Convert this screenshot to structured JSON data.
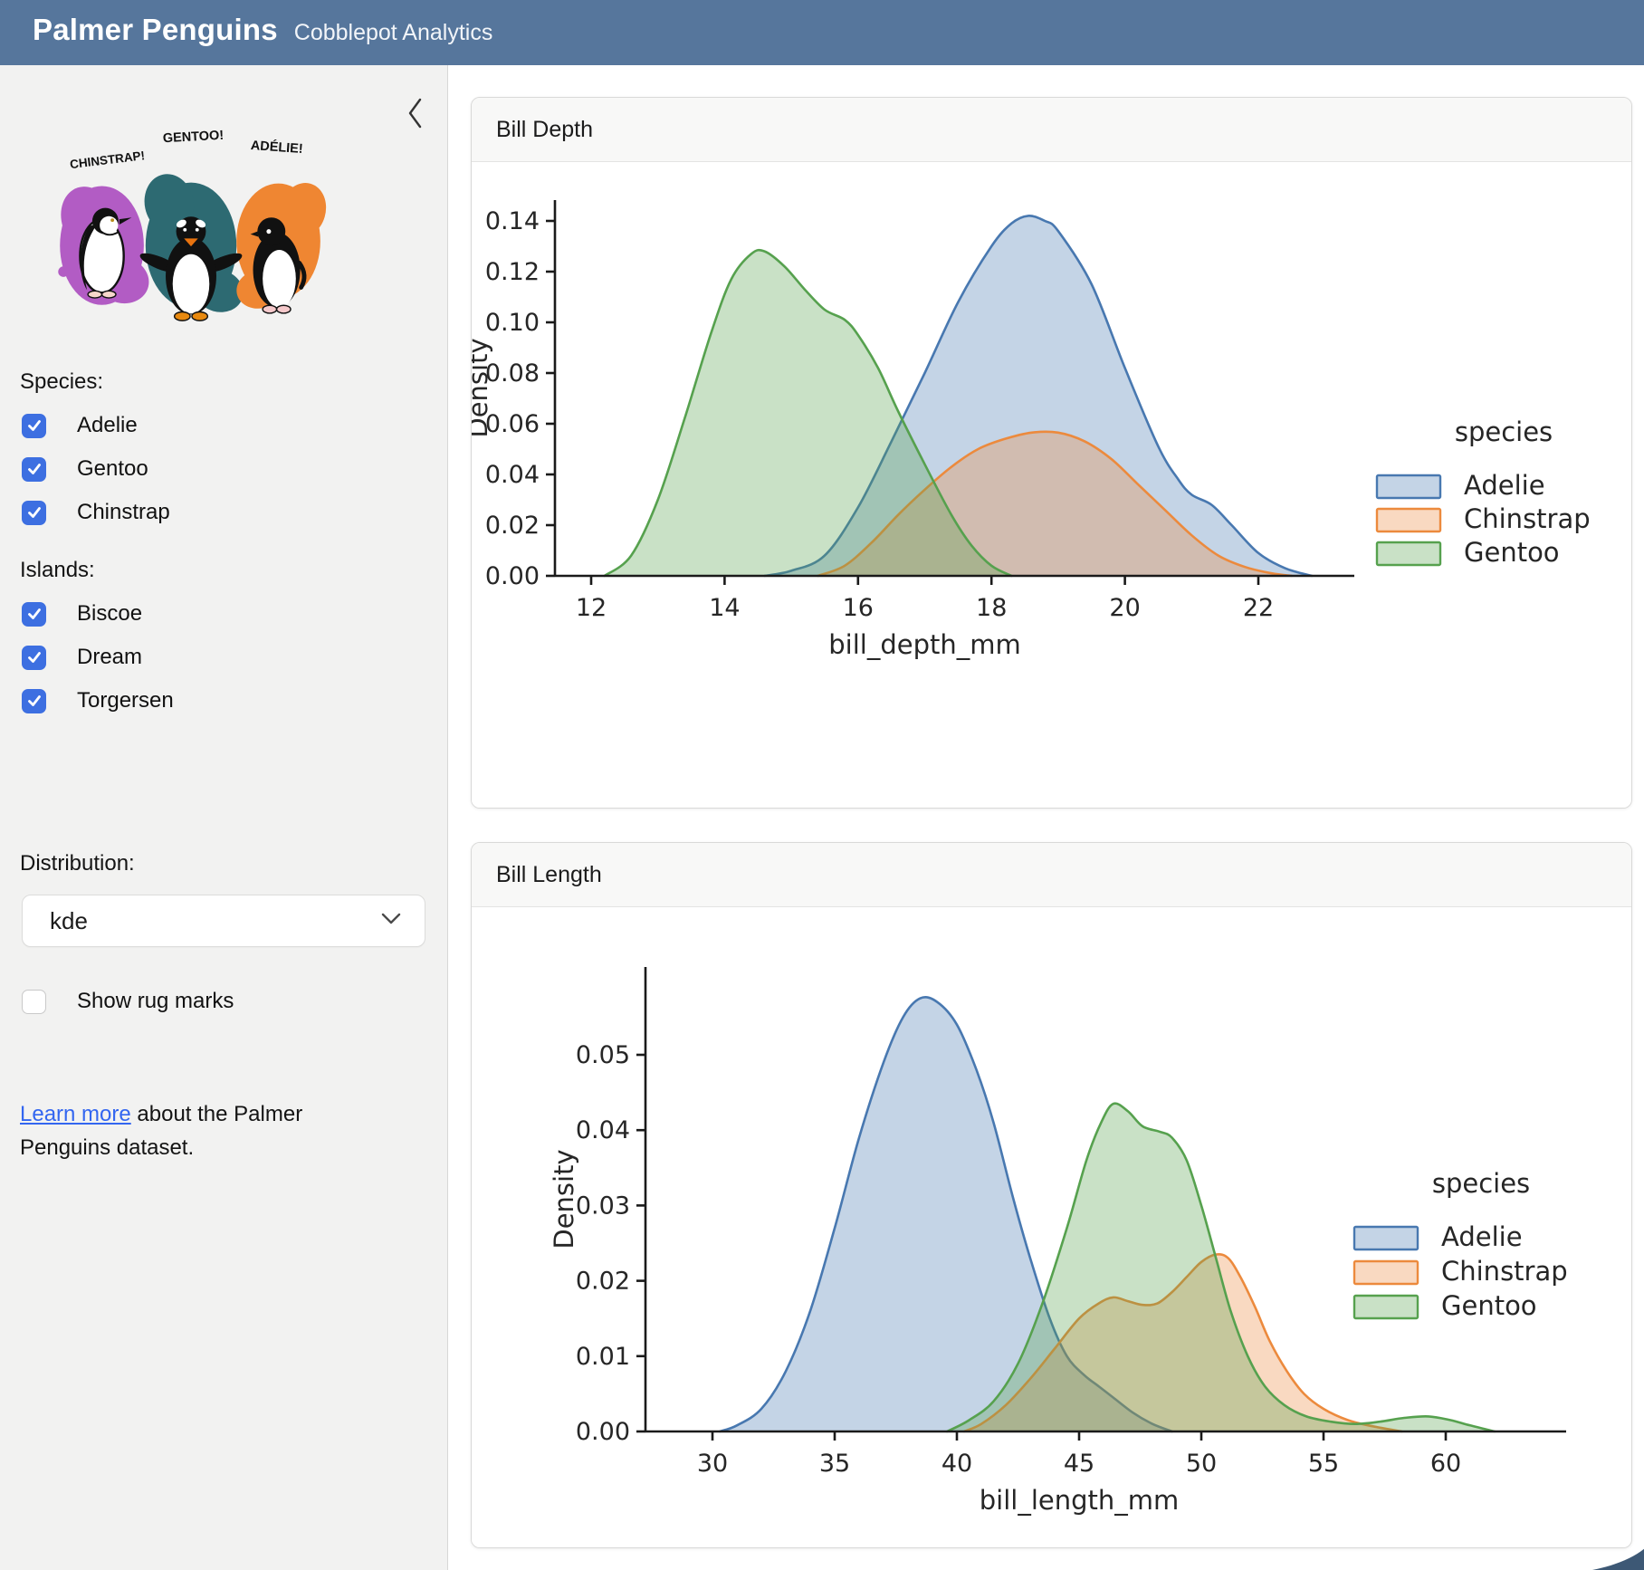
{
  "header": {
    "title": "Palmer Penguins",
    "subtitle": "Cobblepot Analytics"
  },
  "colors": {
    "header_bg": "#56769c",
    "accent_blue": "#3d6fe1",
    "link": "#3366f0",
    "swoosh": "#3d5875"
  },
  "sidebar": {
    "artwork": {
      "labels": [
        "CHINSTRAP!",
        "GENTOO!",
        "ADÉLIE!"
      ],
      "colors": {
        "chinstrap_blob": "#b25cc4",
        "gentoo_blob": "#2d6a72",
        "adelie_blob": "#ef8632"
      }
    },
    "species": {
      "label": "Species:",
      "items": [
        {
          "label": "Adelie",
          "checked": true
        },
        {
          "label": "Gentoo",
          "checked": true
        },
        {
          "label": "Chinstrap",
          "checked": true
        }
      ]
    },
    "islands": {
      "label": "Islands:",
      "items": [
        {
          "label": "Biscoe",
          "checked": true
        },
        {
          "label": "Dream",
          "checked": true
        },
        {
          "label": "Torgersen",
          "checked": true
        }
      ]
    },
    "distribution": {
      "label": "Distribution:",
      "value": "kde"
    },
    "rug": {
      "label": "Show rug marks",
      "checked": false
    },
    "learn_more": {
      "link_text": "Learn more",
      "rest_text": " about the Palmer Penguins dataset."
    }
  },
  "cards": [
    {
      "title": "Bill Depth"
    },
    {
      "title": "Bill Length"
    }
  ],
  "chart_data": [
    {
      "type": "area",
      "title": "Bill Depth",
      "xlabel": "bill_depth_mm",
      "ylabel": "Density",
      "xlim": [
        11.4,
        23.4
      ],
      "ylim": [
        0,
        0.148
      ],
      "xticks": [
        12,
        14,
        16,
        18,
        20,
        22
      ],
      "yticks": [
        0.0,
        0.02,
        0.04,
        0.06,
        0.08,
        0.1,
        0.12,
        0.14
      ],
      "ydecimals": 2,
      "grid": false,
      "legend": {
        "title": "species",
        "position": "center right"
      },
      "series": [
        {
          "name": "Adelie",
          "color": "#4878b0",
          "points": [
            [
              14.6,
              0
            ],
            [
              15.0,
              0.002
            ],
            [
              15.5,
              0.008
            ],
            [
              16.0,
              0.027
            ],
            [
              16.5,
              0.053
            ],
            [
              17.0,
              0.08
            ],
            [
              17.5,
              0.108
            ],
            [
              18.0,
              0.13
            ],
            [
              18.3,
              0.139
            ],
            [
              18.55,
              0.142
            ],
            [
              18.8,
              0.14
            ],
            [
              19.0,
              0.136
            ],
            [
              19.5,
              0.115
            ],
            [
              20.0,
              0.082
            ],
            [
              20.5,
              0.051
            ],
            [
              20.8,
              0.038
            ],
            [
              21.0,
              0.032
            ],
            [
              21.3,
              0.028
            ],
            [
              21.6,
              0.02
            ],
            [
              22.0,
              0.009
            ],
            [
              22.4,
              0.003
            ],
            [
              22.8,
              0
            ]
          ]
        },
        {
          "name": "Chinstrap",
          "color": "#ec8a3d",
          "points": [
            [
              15.4,
              0
            ],
            [
              15.8,
              0.004
            ],
            [
              16.2,
              0.013
            ],
            [
              16.6,
              0.024
            ],
            [
              17.0,
              0.034
            ],
            [
              17.4,
              0.043
            ],
            [
              17.8,
              0.05
            ],
            [
              18.2,
              0.054
            ],
            [
              18.6,
              0.0565
            ],
            [
              19.0,
              0.0565
            ],
            [
              19.4,
              0.053
            ],
            [
              19.8,
              0.046
            ],
            [
              20.2,
              0.036
            ],
            [
              20.6,
              0.026
            ],
            [
              21.0,
              0.016
            ],
            [
              21.4,
              0.008
            ],
            [
              21.8,
              0.0035
            ],
            [
              22.2,
              0.001
            ],
            [
              22.5,
              0
            ]
          ]
        },
        {
          "name": "Gentoo",
          "color": "#56a14e",
          "points": [
            [
              12.2,
              0
            ],
            [
              12.6,
              0.008
            ],
            [
              13.0,
              0.03
            ],
            [
              13.4,
              0.062
            ],
            [
              13.8,
              0.096
            ],
            [
              14.1,
              0.117
            ],
            [
              14.4,
              0.127
            ],
            [
              14.6,
              0.128
            ],
            [
              14.9,
              0.122
            ],
            [
              15.2,
              0.113
            ],
            [
              15.5,
              0.105
            ],
            [
              15.8,
              0.101
            ],
            [
              16.0,
              0.095
            ],
            [
              16.3,
              0.082
            ],
            [
              16.6,
              0.065
            ],
            [
              17.0,
              0.044
            ],
            [
              17.4,
              0.024
            ],
            [
              17.7,
              0.012
            ],
            [
              18.0,
              0.004
            ],
            [
              18.3,
              0
            ]
          ]
        }
      ]
    },
    {
      "type": "area",
      "title": "Bill Length",
      "xlabel": "bill_length_mm",
      "ylabel": "Density",
      "xlim": [
        27.3,
        64.5
      ],
      "ylim": [
        0,
        0.0615
      ],
      "xticks": [
        30,
        35,
        40,
        45,
        50,
        55,
        60
      ],
      "yticks": [
        0.0,
        0.01,
        0.02,
        0.03,
        0.04,
        0.05
      ],
      "ydecimals": 2,
      "grid": false,
      "legend": {
        "title": "species",
        "position": "center right"
      },
      "series": [
        {
          "name": "Adelie",
          "color": "#4878b0",
          "points": [
            [
              30.3,
              0
            ],
            [
              31.0,
              0.0008
            ],
            [
              32.0,
              0.003
            ],
            [
              33.0,
              0.008
            ],
            [
              34.0,
              0.016
            ],
            [
              35.0,
              0.027
            ],
            [
              36.0,
              0.039
            ],
            [
              37.0,
              0.049
            ],
            [
              37.8,
              0.055
            ],
            [
              38.5,
              0.0575
            ],
            [
              39.2,
              0.057
            ],
            [
              40.0,
              0.054
            ],
            [
              40.8,
              0.048
            ],
            [
              41.5,
              0.041
            ],
            [
              42.3,
              0.031
            ],
            [
              43.0,
              0.023
            ],
            [
              43.8,
              0.015
            ],
            [
              44.5,
              0.01
            ],
            [
              45.2,
              0.0075
            ],
            [
              45.8,
              0.006
            ],
            [
              46.4,
              0.0045
            ],
            [
              47.2,
              0.0025
            ],
            [
              48.0,
              0.001
            ],
            [
              48.8,
              0
            ]
          ]
        },
        {
          "name": "Chinstrap",
          "color": "#ec8a3d",
          "points": [
            [
              40.3,
              0
            ],
            [
              41.0,
              0.001
            ],
            [
              42.0,
              0.0035
            ],
            [
              43.0,
              0.007
            ],
            [
              44.0,
              0.011
            ],
            [
              45.0,
              0.015
            ],
            [
              45.8,
              0.017
            ],
            [
              46.4,
              0.0178
            ],
            [
              47.0,
              0.0173
            ],
            [
              47.6,
              0.0168
            ],
            [
              48.2,
              0.017
            ],
            [
              48.8,
              0.0185
            ],
            [
              49.4,
              0.0205
            ],
            [
              50.0,
              0.0225
            ],
            [
              50.6,
              0.0235
            ],
            [
              51.1,
              0.023
            ],
            [
              51.6,
              0.0205
            ],
            [
              52.2,
              0.0165
            ],
            [
              52.8,
              0.012
            ],
            [
              53.5,
              0.008
            ],
            [
              54.2,
              0.005
            ],
            [
              55.0,
              0.003
            ],
            [
              56.0,
              0.0015
            ],
            [
              57.0,
              0.0007
            ],
            [
              58.2,
              0
            ]
          ]
        },
        {
          "name": "Gentoo",
          "color": "#56a14e",
          "points": [
            [
              39.6,
              0
            ],
            [
              40.5,
              0.0015
            ],
            [
              41.5,
              0.004
            ],
            [
              42.5,
              0.009
            ],
            [
              43.5,
              0.017
            ],
            [
              44.5,
              0.027
            ],
            [
              45.3,
              0.036
            ],
            [
              45.9,
              0.041
            ],
            [
              46.4,
              0.0435
            ],
            [
              47.0,
              0.0425
            ],
            [
              47.6,
              0.0405
            ],
            [
              48.3,
              0.0398
            ],
            [
              48.8,
              0.039
            ],
            [
              49.4,
              0.036
            ],
            [
              50.0,
              0.03
            ],
            [
              50.6,
              0.023
            ],
            [
              51.2,
              0.016
            ],
            [
              51.9,
              0.01
            ],
            [
              52.6,
              0.006
            ],
            [
              53.4,
              0.0035
            ],
            [
              54.3,
              0.002
            ],
            [
              55.3,
              0.0013
            ],
            [
              56.3,
              0.001
            ],
            [
              57.3,
              0.0013
            ],
            [
              58.3,
              0.0018
            ],
            [
              59.3,
              0.002
            ],
            [
              60.2,
              0.0015
            ],
            [
              61.0,
              0.0008
            ],
            [
              62.0,
              0
            ]
          ]
        }
      ]
    }
  ]
}
